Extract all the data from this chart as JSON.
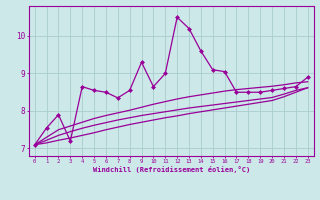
{
  "title": "",
  "xlabel": "Windchill (Refroidissement éolien,°C)",
  "bg_color": "#cce8e8",
  "line_color": "#990099",
  "grid_color": "#aacccc",
  "xlim": [
    -0.5,
    23.5
  ],
  "ylim": [
    6.8,
    10.8
  ],
  "yticks": [
    7,
    8,
    9,
    10
  ],
  "xticks": [
    0,
    1,
    2,
    3,
    4,
    5,
    6,
    7,
    8,
    9,
    10,
    11,
    12,
    13,
    14,
    15,
    16,
    17,
    18,
    19,
    20,
    21,
    22,
    23
  ],
  "series1_x": [
    0,
    1,
    2,
    3,
    4,
    5,
    6,
    7,
    8,
    9,
    10,
    11,
    12,
    13,
    14,
    15,
    16,
    17,
    18,
    19,
    20,
    21,
    22,
    23
  ],
  "series1_y": [
    7.1,
    7.55,
    7.9,
    7.2,
    8.65,
    8.55,
    8.5,
    8.35,
    8.55,
    9.3,
    8.65,
    9.0,
    10.5,
    10.2,
    9.6,
    9.1,
    9.05,
    8.5,
    8.5,
    8.5,
    8.55,
    8.6,
    8.65,
    8.9
  ],
  "series2_x": [
    0,
    1,
    2,
    3,
    4,
    5,
    6,
    7,
    8,
    9,
    10,
    11,
    12,
    13,
    14,
    15,
    16,
    17,
    18,
    19,
    20,
    21,
    22,
    23
  ],
  "series2_y": [
    7.1,
    7.3,
    7.5,
    7.6,
    7.7,
    7.8,
    7.88,
    7.95,
    8.02,
    8.1,
    8.18,
    8.25,
    8.32,
    8.38,
    8.43,
    8.48,
    8.53,
    8.57,
    8.6,
    8.63,
    8.66,
    8.7,
    8.75,
    8.78
  ],
  "series3_x": [
    0,
    1,
    2,
    3,
    4,
    5,
    6,
    7,
    8,
    9,
    10,
    11,
    12,
    13,
    14,
    15,
    16,
    17,
    18,
    19,
    20,
    21,
    22,
    23
  ],
  "series3_y": [
    7.1,
    7.22,
    7.35,
    7.45,
    7.54,
    7.62,
    7.69,
    7.76,
    7.82,
    7.88,
    7.93,
    7.98,
    8.03,
    8.08,
    8.12,
    8.16,
    8.2,
    8.24,
    8.28,
    8.32,
    8.36,
    8.45,
    8.55,
    8.62
  ],
  "series4_x": [
    0,
    1,
    2,
    3,
    4,
    5,
    6,
    7,
    8,
    9,
    10,
    11,
    12,
    13,
    14,
    15,
    16,
    17,
    18,
    19,
    20,
    21,
    22,
    23
  ],
  "series4_y": [
    7.1,
    7.15,
    7.22,
    7.28,
    7.35,
    7.42,
    7.5,
    7.57,
    7.64,
    7.7,
    7.76,
    7.82,
    7.87,
    7.93,
    7.98,
    8.03,
    8.08,
    8.13,
    8.18,
    8.23,
    8.28,
    8.38,
    8.5,
    8.62
  ],
  "marker": "D",
  "markersize": 2.5,
  "linewidth": 0.9
}
